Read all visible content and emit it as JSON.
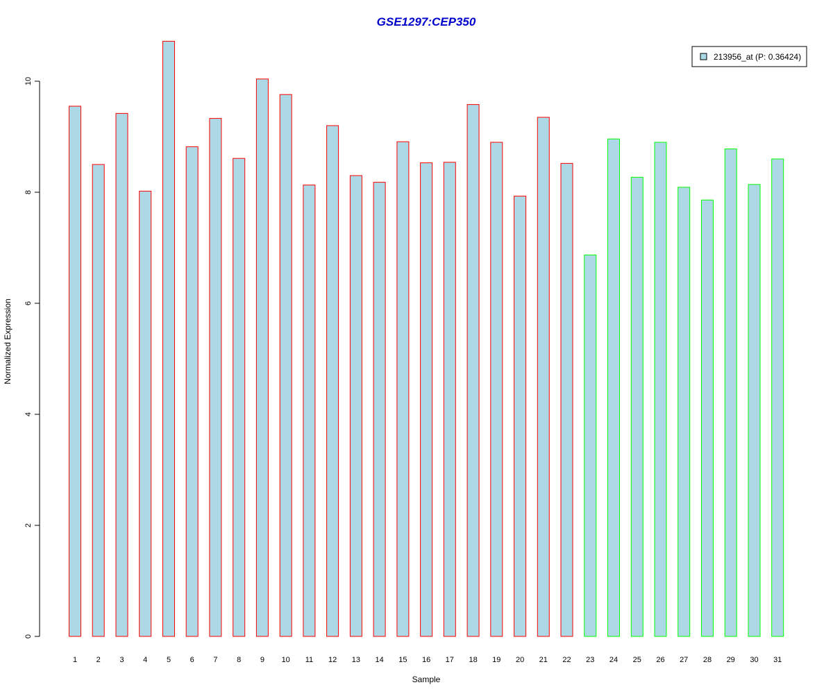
{
  "chart_data": {
    "type": "bar",
    "title": "GSE1297:CEP350",
    "xlabel": "Sample",
    "ylabel": "Normalized Expression",
    "ylim": [
      0,
      10.8
    ],
    "yticks": [
      0,
      2,
      4,
      6,
      8,
      10
    ],
    "grid": false,
    "legend_position": "top-right",
    "categories": [
      "1",
      "2",
      "3",
      "4",
      "5",
      "6",
      "7",
      "8",
      "9",
      "10",
      "11",
      "12",
      "13",
      "14",
      "15",
      "16",
      "17",
      "18",
      "19",
      "20",
      "21",
      "22",
      "23",
      "24",
      "25",
      "26",
      "27",
      "28",
      "29",
      "30",
      "31"
    ],
    "series": [
      {
        "name": "213956_at (P: 0.36424)",
        "values": [
          9.55,
          8.5,
          9.42,
          8.02,
          10.72,
          8.82,
          9.33,
          8.61,
          10.04,
          9.76,
          8.13,
          9.2,
          8.3,
          8.18,
          8.91,
          8.53,
          8.54,
          9.58,
          8.9,
          7.93,
          9.35,
          8.52,
          6.87,
          8.96,
          8.27,
          8.9,
          8.09,
          7.86,
          8.78,
          8.14,
          8.6
        ]
      }
    ],
    "groups": [
      {
        "from": 0,
        "to": 21,
        "border_color": "#ff0000"
      },
      {
        "from": 22,
        "to": 30,
        "border_color": "#00ff00"
      }
    ],
    "colors": {
      "bar_fill": "#add8e6",
      "title": "#0000cd",
      "axis": "#000000"
    }
  }
}
